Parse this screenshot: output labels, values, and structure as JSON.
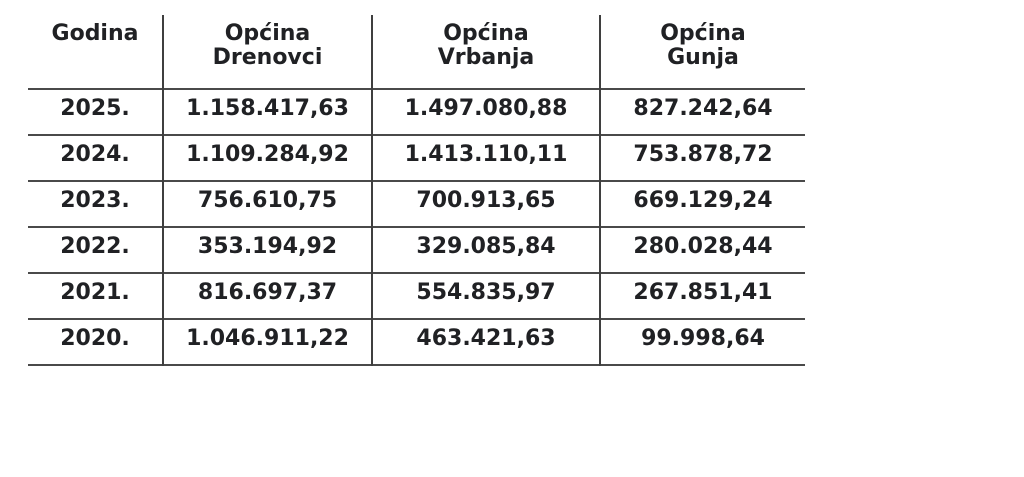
{
  "page": {
    "background": "#ffffff"
  },
  "colors": {
    "text": "#202124",
    "grid_line": "#4a4a4a"
  },
  "table": {
    "columns": [
      "Godina",
      "Općina\nDrenovci",
      "Općina\nVrbanja",
      "Općina\nGunja"
    ],
    "rows": [
      [
        "2025.",
        "1.158.417,63",
        "1.497.080,88",
        "827.242,64"
      ],
      [
        "2024.",
        "1.109.284,92",
        "1.413.110,11",
        "753.878,72"
      ],
      [
        "2023.",
        "756.610,75",
        "700.913,65",
        "669.129,24"
      ],
      [
        "2022.",
        "353.194,92",
        "329.085,84",
        "280.028,44"
      ],
      [
        "2021.",
        "816.697,37",
        "554.835,97",
        "267.851,41"
      ],
      [
        "2020.",
        "1.046.911,22",
        "463.421,63",
        "99.998,64"
      ]
    ]
  }
}
